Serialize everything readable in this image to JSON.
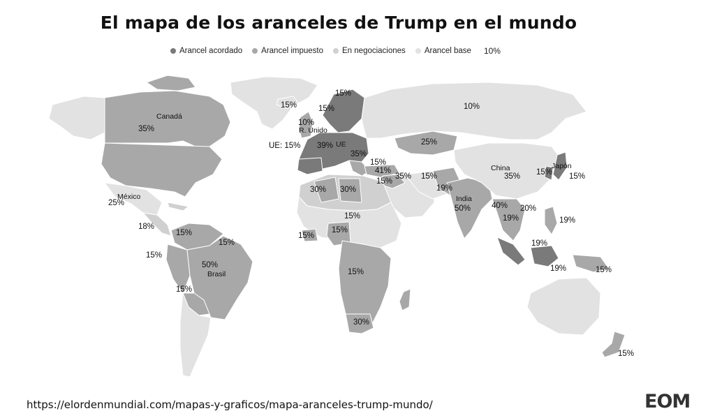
{
  "title": "El mapa de los aranceles de Trump en el mundo",
  "legend": {
    "items": [
      {
        "label": "Arancel acordado",
        "color": "#7a7a7a"
      },
      {
        "label": "Arancel impuesto",
        "color": "#a8a8a8"
      },
      {
        "label": "En negociaciones",
        "color": "#d0d0d0"
      },
      {
        "label": "Arancel base",
        "color": "#e2e2e2"
      }
    ],
    "base_value": "10%"
  },
  "colors": {
    "ocean": "#ffffff",
    "acordado": "#7a7a7a",
    "impuesto": "#a8a8a8",
    "negociaciones": "#d0d0d0",
    "base": "#e2e2e2",
    "border": "#ffffff"
  },
  "labels": [
    {
      "text": "15%"
    },
    {
      "text": "15%"
    },
    {
      "text": "15%"
    },
    {
      "text": "10%"
    },
    {
      "text": "Canadá"
    },
    {
      "text": "35%"
    },
    {
      "text": "10%"
    },
    {
      "text": "R. Unido"
    },
    {
      "text": "UE: 15%"
    },
    {
      "text": "39%"
    },
    {
      "text": "UE"
    },
    {
      "text": "35%"
    },
    {
      "text": "25%"
    },
    {
      "text": "15%"
    },
    {
      "text": "41%"
    },
    {
      "text": "15%"
    },
    {
      "text": "35%"
    },
    {
      "text": "15%"
    },
    {
      "text": "China"
    },
    {
      "text": "35%"
    },
    {
      "text": "15%"
    },
    {
      "text": "Japón"
    },
    {
      "text": "15%"
    },
    {
      "text": "30%"
    },
    {
      "text": "30%"
    },
    {
      "text": "19%"
    },
    {
      "text": "India"
    },
    {
      "text": "50%"
    },
    {
      "text": "40%"
    },
    {
      "text": "20%"
    },
    {
      "text": "19%"
    },
    {
      "text": "19%"
    },
    {
      "text": "México"
    },
    {
      "text": "25%"
    },
    {
      "text": "15%"
    },
    {
      "text": "15%"
    },
    {
      "text": "15%"
    },
    {
      "text": "18%"
    },
    {
      "text": "15%"
    },
    {
      "text": "15%"
    },
    {
      "text": "19%"
    },
    {
      "text": "15%"
    },
    {
      "text": "50%"
    },
    {
      "text": "Brasil"
    },
    {
      "text": "15%"
    },
    {
      "text": "19%"
    },
    {
      "text": "15%"
    },
    {
      "text": "15%"
    },
    {
      "text": "30%"
    },
    {
      "text": "15%"
    }
  ],
  "source_url": "https://elordenmundial.com/mapas-y-graficos/mapa-aranceles-trump-mundo/",
  "logo": "EOM"
}
